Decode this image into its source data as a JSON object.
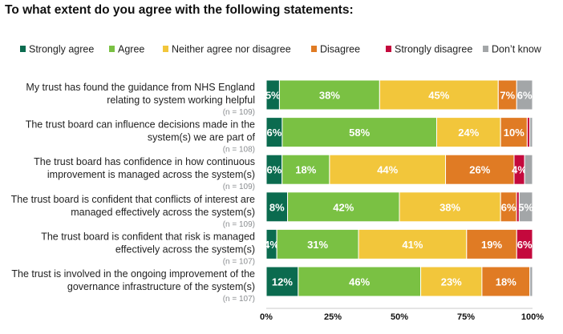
{
  "chart_data": {
    "type": "bar",
    "orientation": "horizontal",
    "stacked": "100%",
    "title": "To what extent do you agree with the following statements:",
    "legend": [
      "Strongly agree",
      "Agree",
      "Neither agree nor disagree",
      "Disagree",
      "Strongly disagree",
      "Don’t know"
    ],
    "legend_position": "top",
    "colors": [
      "#0b6b4f",
      "#7ac143",
      "#f2c63b",
      "#e07b24",
      "#c4093d",
      "#a3a6a8"
    ],
    "categories": [
      {
        "label_lines": [
          "My trust has found the guidance from NHS England",
          "relating to system working helpful"
        ],
        "n": "(n = 109)"
      },
      {
        "label_lines": [
          "The trust board can influence decisions made in the",
          "system(s) we are part of"
        ],
        "n": "(n = 108)"
      },
      {
        "label_lines": [
          "The trust board has confidence in how continuous",
          "improvement is managed across the system(s)"
        ],
        "n": "(n = 109)"
      },
      {
        "label_lines": [
          "The trust board is confident that conflicts of interest are",
          "managed effectively across the system(s)"
        ],
        "n": "(n = 109)"
      },
      {
        "label_lines": [
          "The trust board is confident that risk is managed",
          "effectively across the system(s)"
        ],
        "n": "(n = 107)"
      },
      {
        "label_lines": [
          "The trust is involved in the ongoing improvement of the",
          "governance infrastructure of the system(s)"
        ],
        "n": "(n = 107)"
      }
    ],
    "series": [
      {
        "name": "Strongly agree",
        "values": [
          5,
          6,
          6,
          8,
          4,
          12
        ],
        "labels": [
          "5%",
          "6%",
          "6%",
          "8%",
          "4%",
          "12%"
        ]
      },
      {
        "name": "Agree",
        "values": [
          38,
          58,
          18,
          42,
          31,
          46
        ],
        "labels": [
          "38%",
          "58%",
          "18%",
          "42%",
          "31%",
          "46%"
        ]
      },
      {
        "name": "Neither agree nor disagree",
        "values": [
          45,
          24,
          44,
          38,
          41,
          23
        ],
        "labels": [
          "45%",
          "24%",
          "44%",
          "38%",
          "41%",
          "23%"
        ]
      },
      {
        "name": "Disagree",
        "values": [
          7,
          10,
          26,
          6,
          19,
          18
        ],
        "labels": [
          "7%",
          "10%",
          "26%",
          "6%",
          "19%",
          "18%"
        ]
      },
      {
        "name": "Strongly disagree",
        "values": [
          0,
          1,
          4,
          1,
          6,
          0
        ],
        "labels": [
          "",
          "",
          "4%",
          "",
          "6%",
          ""
        ]
      },
      {
        "name": "Don’t know",
        "values": [
          6,
          1,
          3,
          5,
          0,
          1
        ],
        "labels": [
          "6%",
          "",
          "",
          "5%",
          "",
          ""
        ]
      }
    ],
    "x_ticks": [
      "0%",
      "25%",
      "50%",
      "75%",
      "100%"
    ],
    "xlim": [
      0,
      100
    ],
    "grid": false
  }
}
